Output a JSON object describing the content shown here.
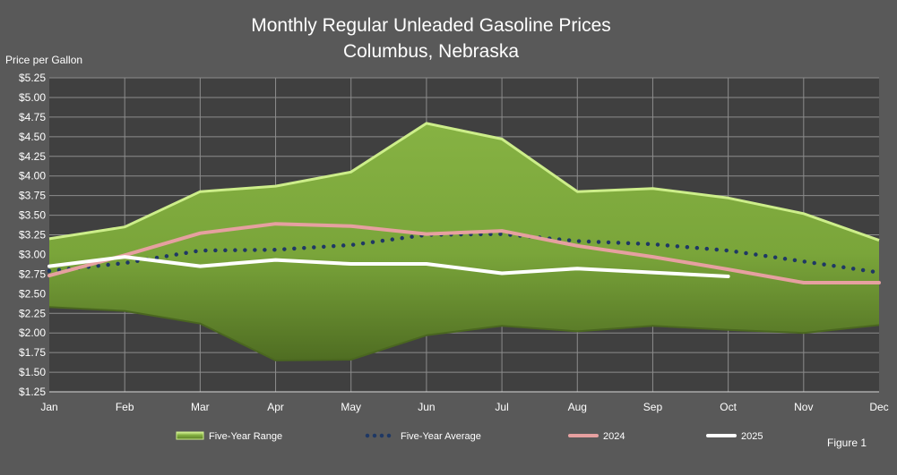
{
  "chart_data": {
    "type": "area",
    "title": "Monthly Regular Unleaded Gasoline Prices",
    "subtitle": "Columbus, Nebraska",
    "ylabel": "Price per Gallon",
    "xlabel": "",
    "categories": [
      "Jan",
      "Feb",
      "Mar",
      "Apr",
      "May",
      "Jun",
      "Jul",
      "Aug",
      "Sep",
      "Oct",
      "Nov",
      "Dec"
    ],
    "yticks": [
      "$1.25",
      "$1.50",
      "$1.75",
      "$2.00",
      "$2.25",
      "$2.50",
      "$2.75",
      "$3.00",
      "$3.25",
      "$3.50",
      "$3.75",
      "$4.00",
      "$4.25",
      "$4.50",
      "$4.75",
      "$5.00",
      "$5.25"
    ],
    "ylim": [
      1.25,
      5.25
    ],
    "grid": true,
    "legend_position": "bottom",
    "range": {
      "name": "Five-Year Range",
      "high": [
        3.2,
        3.35,
        3.8,
        3.87,
        4.05,
        4.67,
        4.47,
        3.8,
        3.84,
        3.72,
        3.52,
        3.18
      ],
      "low": [
        2.33,
        2.28,
        2.12,
        1.65,
        1.66,
        1.97,
        2.09,
        2.02,
        2.09,
        2.04,
        2.0,
        2.1
      ],
      "color": "#7dab3a"
    },
    "series": [
      {
        "name": "Five-Year Average",
        "values": [
          2.79,
          2.89,
          3.05,
          3.06,
          3.12,
          3.25,
          3.26,
          3.17,
          3.13,
          3.05,
          2.91,
          2.77
        ],
        "color": "#1f3864",
        "style": "dotted"
      },
      {
        "name": "2024",
        "values": [
          2.73,
          2.99,
          3.27,
          3.39,
          3.36,
          3.26,
          3.3,
          3.11,
          2.97,
          2.81,
          2.64,
          2.64
        ],
        "color": "#e6a0a0",
        "style": "solid"
      },
      {
        "name": "2025",
        "values": [
          2.85,
          2.97,
          2.85,
          2.93,
          2.88,
          2.88,
          2.76,
          2.82,
          2.77,
          2.72,
          null,
          null
        ],
        "color": "#ffffff",
        "style": "solid"
      }
    ]
  },
  "figure_label": "Figure 1"
}
